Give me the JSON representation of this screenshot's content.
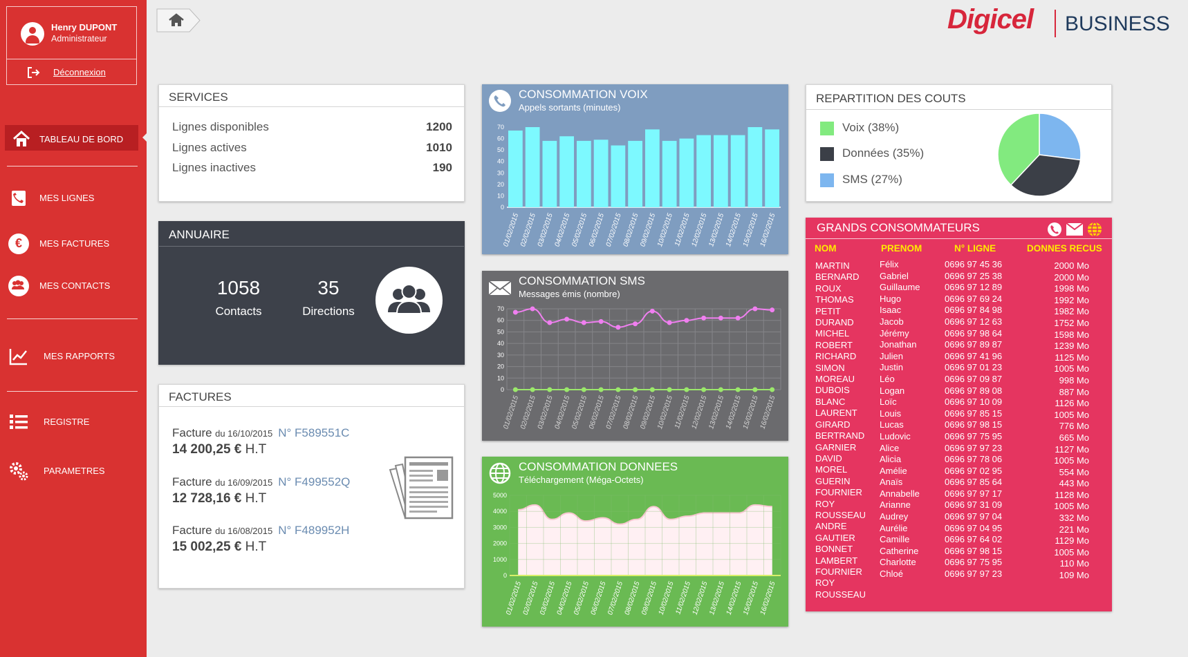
{
  "user": {
    "name": "Henry DUPONT",
    "role": "Administrateur",
    "logout_label": "Déconnexion"
  },
  "nav": {
    "dashboard": "TABLEAU DE BORD",
    "lines": "MES LIGNES",
    "invoices": "MES FACTURES",
    "contacts": "MES CONTACTS",
    "reports": "MES RAPPORTS",
    "register": "REGISTRE",
    "settings": "PARAMETRES"
  },
  "brand": {
    "name": "Digicel",
    "suffix": "BUSINESS",
    "color": "#d7263b"
  },
  "services": {
    "title": "SERVICES",
    "rows": [
      {
        "label": "Lignes disponibles",
        "value": "1200"
      },
      {
        "label": "Lignes actives",
        "value": "1010"
      },
      {
        "label": "Lignes inactives",
        "value": "190"
      }
    ]
  },
  "annuaire": {
    "title": "ANNUAIRE",
    "contacts_count": "1058",
    "contacts_label": "Contacts",
    "directions_count": "35",
    "directions_label": "Directions"
  },
  "factures": {
    "title": "FACTURES",
    "items": [
      {
        "label": "Facture",
        "date": "du 16/10/2015",
        "number": "N° F589551C",
        "amount": "14 200,25 €",
        "tax": "H.T"
      },
      {
        "label": "Facture",
        "date": "du 16/09/2015",
        "number": "N° F499552Q",
        "amount": "12 728,16 €",
        "tax": "H.T"
      },
      {
        "label": "Facture",
        "date": "du 16/08/2015",
        "number": "N° F489952H",
        "amount": "15 002,25 €",
        "tax": "H.T"
      }
    ]
  },
  "chart_data": [
    {
      "type": "bar",
      "title": "CONSOMMATION VOIX",
      "subtitle": "Appels sortants (minutes)",
      "categories": [
        "01/02/2015",
        "02/02/2015",
        "03/02/2015",
        "04/02/2015",
        "05/02/2015",
        "06/02/2015",
        "07/02/2015",
        "08/02/2015",
        "09/02/2015",
        "10/02/2015",
        "11/02/2015",
        "12/02/2015",
        "13/02/2015",
        "14/02/2015",
        "15/02/2015",
        "16/02/2015"
      ],
      "values": [
        67,
        70,
        58,
        62,
        58,
        59,
        54,
        58,
        68,
        58,
        60,
        63,
        63,
        63,
        70,
        68
      ],
      "ylim": [
        0,
        70
      ],
      "yticks": [
        0,
        10,
        20,
        30,
        40,
        50,
        60,
        70
      ],
      "bar_color": "#7df9ff"
    },
    {
      "type": "line",
      "title": "CONSOMMATION SMS",
      "subtitle": "Messages émis (nombre)",
      "categories": [
        "01/02/2015",
        "02/02/2015",
        "03/02/2015",
        "04/02/2015",
        "05/02/2015",
        "06/02/2015",
        "07/02/2015",
        "08/02/2015",
        "09/02/2015",
        "10/02/2015",
        "11/02/2015",
        "12/02/2015",
        "13/02/2015",
        "14/02/2015",
        "15/02/2015",
        "16/02/2015"
      ],
      "series": [
        {
          "values": [
            67,
            70,
            58,
            61,
            58,
            59,
            54,
            57,
            68,
            58,
            60,
            62,
            62,
            62,
            70,
            69
          ],
          "color": "#f07ff0"
        },
        {
          "values": [
            0,
            0,
            0,
            0,
            0,
            0,
            0,
            0,
            0,
            0,
            0,
            0,
            0,
            0,
            0,
            0
          ],
          "color": "#9be86b"
        }
      ],
      "ylim": [
        0,
        70
      ],
      "yticks": [
        0,
        10,
        20,
        30,
        40,
        50,
        60,
        70
      ]
    },
    {
      "type": "area",
      "title": "CONSOMMATION DONNEES",
      "subtitle": "Téléchargement (Méga-Octets)",
      "categories": [
        "01/02/2015",
        "02/02/2015",
        "03/02/2015",
        "04/02/2015",
        "05/02/2015",
        "06/02/2015",
        "07/02/2015",
        "08/02/2015",
        "09/02/2015",
        "10/02/2015",
        "11/02/2015",
        "12/02/2015",
        "13/02/2015",
        "14/02/2015",
        "15/02/2015",
        "16/02/2015"
      ],
      "values": [
        4100,
        4400,
        3500,
        3900,
        3400,
        3600,
        3200,
        3500,
        4300,
        3500,
        3700,
        3900,
        3900,
        3900,
        4400,
        4300
      ],
      "ylim": [
        0,
        5000
      ],
      "yticks": [
        0,
        1000,
        2000,
        3000,
        4000,
        5000
      ],
      "line_color": "#f9c7d2",
      "fill_color": "#fff0f3"
    },
    {
      "type": "pie",
      "title": "REPARTITION DES COUTS",
      "labels": [
        "Voix (38%)",
        "Données (35%)",
        "SMS (27%)"
      ],
      "values": [
        38,
        35,
        27
      ],
      "colors": [
        "#82ea7f",
        "#3b3f47",
        "#7db6ef"
      ]
    }
  ],
  "grands": {
    "title": "GRANDS CONSOMMATEURS",
    "headers": [
      "NOM",
      "PRENOM",
      "N° LIGNE",
      "DONNES RECUS"
    ],
    "rows": [
      [
        "MARTIN",
        "Félix",
        "0696 97 45 36",
        "2000 Mo"
      ],
      [
        "BERNARD",
        "Gabriel",
        "0696 97 25 38",
        "2000 Mo"
      ],
      [
        "ROUX",
        "Guillaume",
        "0696 97 12 89",
        "1998 Mo"
      ],
      [
        "THOMAS",
        "Hugo",
        "0696 97 69 24",
        "1992 Mo"
      ],
      [
        "PETIT",
        "Isaac",
        "0696 97 84 98",
        "1982 Mo"
      ],
      [
        "DURAND",
        "Jacob",
        "0696 97 12 63",
        "1752 Mo"
      ],
      [
        "MICHEL",
        "Jérémy",
        "0696 97 98 64",
        "1598 Mo"
      ],
      [
        "ROBERT",
        "Jonathan",
        "0696 97 89 87",
        "1239 Mo"
      ],
      [
        "RICHARD",
        "Julien",
        "0696 97 41 96",
        "1125 Mo"
      ],
      [
        "SIMON",
        "Justin",
        "0696 97 01 23",
        "1005 Mo"
      ],
      [
        "MOREAU",
        "Léo",
        "0696 97 09 87",
        "998 Mo"
      ],
      [
        "DUBOIS",
        "Logan",
        "0696 97 89 08",
        "887 Mo"
      ],
      [
        "BLANC",
        "Loïc",
        "0696 97 10 09",
        "1126 Mo"
      ],
      [
        "LAURENT",
        "Louis",
        "0696 97 85 15",
        "1005 Mo"
      ],
      [
        "GIRARD",
        "Lucas",
        "0696 97 98 15",
        "776 Mo"
      ],
      [
        "BERTRAND",
        "Ludovic",
        "0696 97 75 95",
        "665 Mo"
      ],
      [
        "GARNIER",
        "Alice",
        "0696 97 97 23",
        "1127 Mo"
      ],
      [
        "DAVID",
        "Alicia",
        "0696 97 78 06",
        "1005 Mo"
      ],
      [
        "MOREL",
        "Amélie",
        "0696 97 02 95",
        "554 Mo"
      ],
      [
        "GUERIN",
        "Anaïs",
        "0696 97 85 64",
        "443 Mo"
      ],
      [
        "FOURNIER",
        "Annabelle",
        "0696 97 97 17",
        "1128 Mo"
      ],
      [
        "ROY",
        "Arianne",
        "0696 97 31 09",
        "1005 Mo"
      ],
      [
        "ROUSSEAU",
        "Audrey",
        "0696 97 97 04",
        "332 Mo"
      ],
      [
        "ANDRE",
        "Aurélie",
        "0696 97 04 95",
        "221 Mo"
      ],
      [
        "GAUTIER",
        "Camille",
        "0696 97 64 02",
        "1129 Mo"
      ],
      [
        "BONNET",
        "Catherine",
        "0696 97 98 15",
        "1005 Mo"
      ],
      [
        "LAMBERT",
        "Charlotte",
        "0696 97 75 95",
        "110 Mo"
      ],
      [
        "FOURNIER",
        "Chloé",
        "0696 97 97 23",
        "109 Mo"
      ],
      [
        "ROY",
        "",
        "",
        " "
      ],
      [
        "ROUSSEAU",
        "",
        "",
        ""
      ]
    ]
  },
  "colors": {
    "sidebar": "#d93231",
    "active_nav": "#b81f22",
    "grands_bg": "#e53560",
    "header_yellow": "#ffea00"
  }
}
